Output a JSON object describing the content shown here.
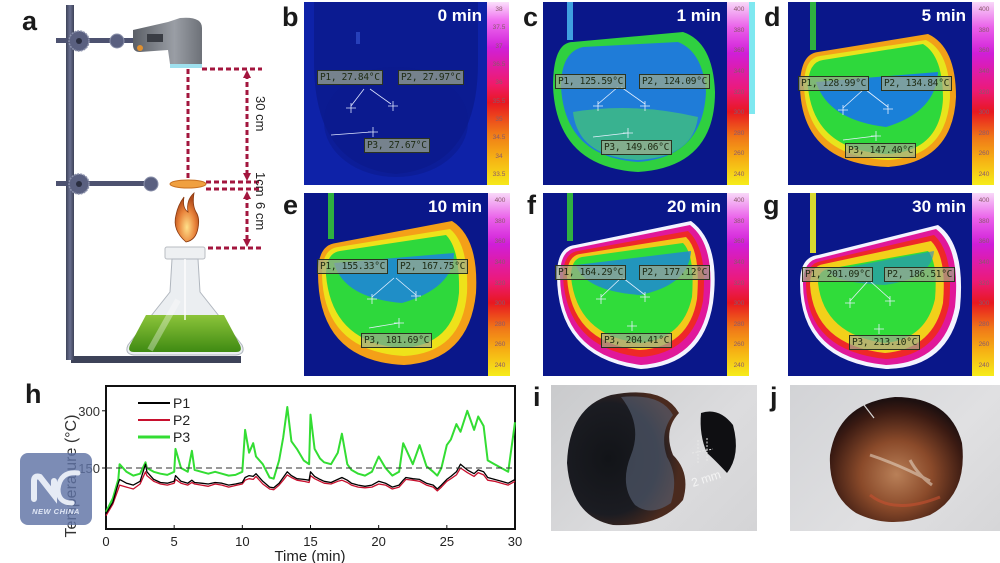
{
  "figure": {
    "panel_letters": [
      "a",
      "b",
      "c",
      "d",
      "e",
      "f",
      "g",
      "h",
      "i",
      "j"
    ]
  },
  "panel_a": {
    "label": "a",
    "dimensions": {
      "camera_to_sample": "30 cm",
      "sample_thickness": "1cm",
      "flame_to_sample": "6 cm"
    },
    "icons": [
      "retort-stand-icon",
      "thermal-camera-icon",
      "flame-icon",
      "alcohol-lamp-icon"
    ]
  },
  "thermal_panels": [
    {
      "label": "b",
      "time": "0 min",
      "p1": "P1, 27.84°C",
      "p2": "P2, 27.97°C",
      "p3": "P3, 27.67°C",
      "colorbar": {
        "ticks": [
          "38",
          "37.5",
          "37",
          "36.5",
          "36",
          "35.5",
          "35",
          "34.5",
          "34",
          "33.5"
        ]
      }
    },
    {
      "label": "c",
      "time": "1 min",
      "p1": "P1, 125.59°C",
      "p2": "P2, 124.09°C",
      "p3": "P3, 149.06°C",
      "colorbar": {
        "ticks": [
          "400",
          "380",
          "360",
          "340",
          "320",
          "300",
          "280",
          "260",
          "240"
        ]
      }
    },
    {
      "label": "d",
      "time": "5 min",
      "p1": "P1, 128.99°C",
      "p2": "P2, 134.84°C",
      "p3": "P3, 147.40°C",
      "colorbar": {
        "ticks": [
          "400",
          "380",
          "360",
          "340",
          "320",
          "300",
          "280",
          "260",
          "240"
        ]
      }
    },
    {
      "label": "e",
      "time": "10 min",
      "p1": "P1, 155.33°C",
      "p2": "P2, 167.75°C",
      "p3": "P3, 181.69°C",
      "colorbar": {
        "ticks": [
          "400",
          "380",
          "360",
          "340",
          "320",
          "300",
          "280",
          "260",
          "240"
        ]
      }
    },
    {
      "label": "f",
      "time": "20 min",
      "p1": "P1, 164.29°C",
      "p2": "P2, 177.12°C",
      "p3": "P3, 204.41°C",
      "colorbar": {
        "ticks": [
          "400",
          "380",
          "360",
          "340",
          "320",
          "300",
          "280",
          "260",
          "240"
        ]
      }
    },
    {
      "label": "g",
      "time": "30 min",
      "p1": "P1, 201.09°C",
      "p2": "P2, 186.51°C",
      "p3": "P3, 213.10°C",
      "colorbar": {
        "ticks": [
          "400",
          "380",
          "360",
          "340",
          "320",
          "300",
          "280",
          "260",
          "240"
        ]
      }
    }
  ],
  "chart_data": {
    "type": "line",
    "panel_label": "h",
    "title": "",
    "xlabel": "Time (min)",
    "ylabel": "Temperature (°C)",
    "xlim": [
      0,
      30
    ],
    "ylim": [
      -10,
      365
    ],
    "xticks": [
      "0",
      "5",
      "10",
      "15",
      "20",
      "25",
      "30"
    ],
    "yticks": [
      "150",
      "300"
    ],
    "grid": false,
    "legend": {
      "position": "top-left",
      "entries": [
        "P1",
        "P2",
        "P3"
      ]
    },
    "reference_line": {
      "y": 150,
      "style": "dashed"
    },
    "x": [
      0,
      0.5,
      0.9,
      1.0,
      1.5,
      2.0,
      2.5,
      2.9,
      3.0,
      3.5,
      4.0,
      4.5,
      5.0,
      5.1,
      5.5,
      6.0,
      6.3,
      6.5,
      7.0,
      7.5,
      8.0,
      8.5,
      9.0,
      9.5,
      10.0,
      10.2,
      10.5,
      10.8,
      11.0,
      11.5,
      12.0,
      12.3,
      12.7,
      13.0,
      13.3,
      13.6,
      14.0,
      14.5,
      14.9,
      15.0,
      15.3,
      15.7,
      16.0,
      16.5,
      17.0,
      17.3,
      17.7,
      18.0,
      18.5,
      19.0,
      19.5,
      20.0,
      20.5,
      21.0,
      21.5,
      21.8,
      22.0,
      22.5,
      23.0,
      23.5,
      24.0,
      24.3,
      24.6,
      25.0,
      25.3,
      25.7,
      26.0,
      26.5,
      27.0,
      27.3,
      27.7,
      28.0,
      28.5,
      29.0,
      29.5,
      30.0
    ],
    "series": [
      {
        "name": "P1",
        "color": "#000000",
        "values": [
          30,
          60,
          110,
          120,
          110,
          105,
          115,
          160,
          140,
          120,
          112,
          110,
          115,
          130,
          115,
          110,
          118,
          112,
          110,
          108,
          112,
          110,
          105,
          108,
          112,
          125,
          130,
          128,
          135,
          115,
          100,
          98,
          110,
          125,
          140,
          130,
          122,
          120,
          118,
          140,
          128,
          120,
          115,
          112,
          120,
          125,
          118,
          110,
          105,
          102,
          105,
          115,
          110,
          100,
          105,
          118,
          125,
          122,
          120,
          110,
          105,
          95,
          105,
          120,
          128,
          140,
          160,
          145,
          135,
          145,
          140,
          125,
          120,
          115,
          110,
          120
        ]
      },
      {
        "name": "P2",
        "color": "#c8102e",
        "values": [
          25,
          55,
          95,
          105,
          100,
          95,
          108,
          140,
          130,
          115,
          108,
          105,
          110,
          120,
          110,
          105,
          112,
          108,
          105,
          102,
          108,
          105,
          100,
          104,
          108,
          118,
          122,
          120,
          128,
          108,
          95,
          93,
          105,
          118,
          132,
          125,
          118,
          115,
          112,
          130,
          122,
          115,
          110,
          108,
          115,
          118,
          112,
          105,
          100,
          98,
          100,
          108,
          105,
          95,
          100,
          112,
          120,
          118,
          115,
          105,
          100,
          90,
          100,
          115,
          122,
          132,
          150,
          138,
          128,
          138,
          132,
          118,
          115,
          110,
          105,
          115
        ]
      },
      {
        "name": "P3",
        "color": "#33dd33",
        "values": [
          35,
          70,
          120,
          160,
          140,
          130,
          135,
          165,
          150,
          140,
          135,
          132,
          140,
          200,
          150,
          140,
          195,
          145,
          140,
          135,
          140,
          135,
          130,
          132,
          140,
          250,
          190,
          215,
          180,
          160,
          125,
          122,
          170,
          230,
          310,
          220,
          200,
          170,
          160,
          290,
          200,
          175,
          165,
          160,
          190,
          240,
          160,
          145,
          135,
          130,
          140,
          180,
          150,
          130,
          140,
          215,
          200,
          160,
          210,
          155,
          140,
          130,
          150,
          210,
          225,
          265,
          245,
          300,
          250,
          285,
          260,
          170,
          160,
          150,
          140,
          270
        ]
      }
    ]
  },
  "photo_panels": [
    {
      "label": "i",
      "annotation": "2 mm"
    },
    {
      "label": "j"
    }
  ],
  "watermark": {
    "text": "NEW CHINA"
  }
}
